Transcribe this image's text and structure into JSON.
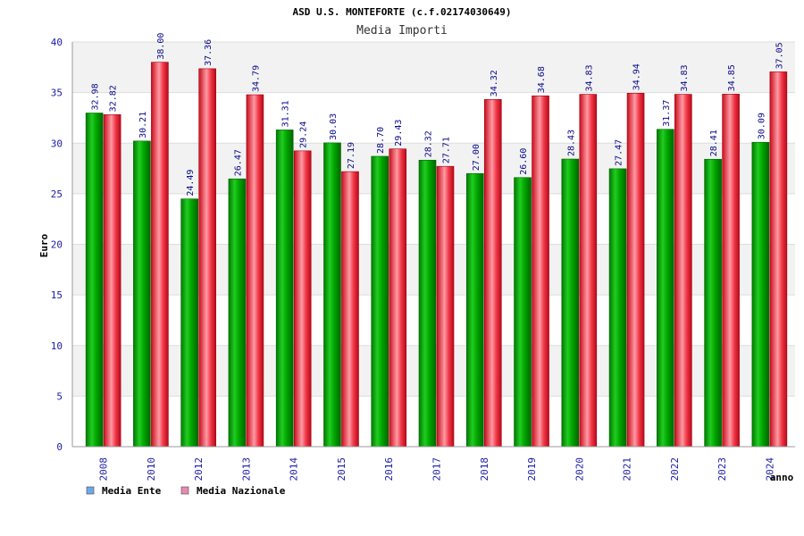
{
  "chart_data": {
    "type": "bar",
    "title": "ASD U.S. MONTEFORTE (c.f.02174030649)",
    "subtitle": "Media Importi",
    "xlabel": "anno",
    "ylabel": "Euro",
    "ylim": [
      0,
      40
    ],
    "yticks": [
      0,
      5,
      10,
      15,
      20,
      25,
      30,
      35,
      40
    ],
    "categories": [
      "2008",
      "2010",
      "2012",
      "2013",
      "2014",
      "2015",
      "2016",
      "2017",
      "2018",
      "2019",
      "2020",
      "2021",
      "2022",
      "2023",
      "2024"
    ],
    "series": [
      {
        "name": "Media Ente",
        "color": "#00aa00",
        "legend_color": "#6fa8e8",
        "values": [
          32.98,
          30.21,
          24.49,
          26.47,
          31.31,
          30.03,
          28.7,
          28.32,
          27.0,
          26.6,
          28.43,
          27.47,
          31.37,
          28.41,
          30.09
        ],
        "labels": [
          "32.98",
          "30.21",
          "24.49",
          "26.47",
          "31.31",
          "30.03",
          "28.70",
          "28.32",
          "27.00",
          "26.60",
          "28.43",
          "27.47",
          "31.37",
          "28.41",
          "30.09"
        ]
      },
      {
        "name": "Media Nazionale",
        "color": "#dd1122",
        "legend_color": "#e88ab4",
        "values": [
          32.82,
          38.0,
          37.36,
          34.79,
          29.24,
          27.19,
          29.43,
          27.71,
          34.32,
          34.68,
          34.83,
          34.94,
          34.83,
          34.85,
          37.05
        ],
        "labels": [
          "32.82",
          "38.00",
          "37.36",
          "34.79",
          "29.24",
          "27.19",
          "29.43",
          "27.71",
          "34.32",
          "34.68",
          "34.83",
          "34.94",
          "34.83",
          "34.85",
          "37.05"
        ]
      }
    ],
    "legend_position": "bottom-left",
    "grid": true
  }
}
